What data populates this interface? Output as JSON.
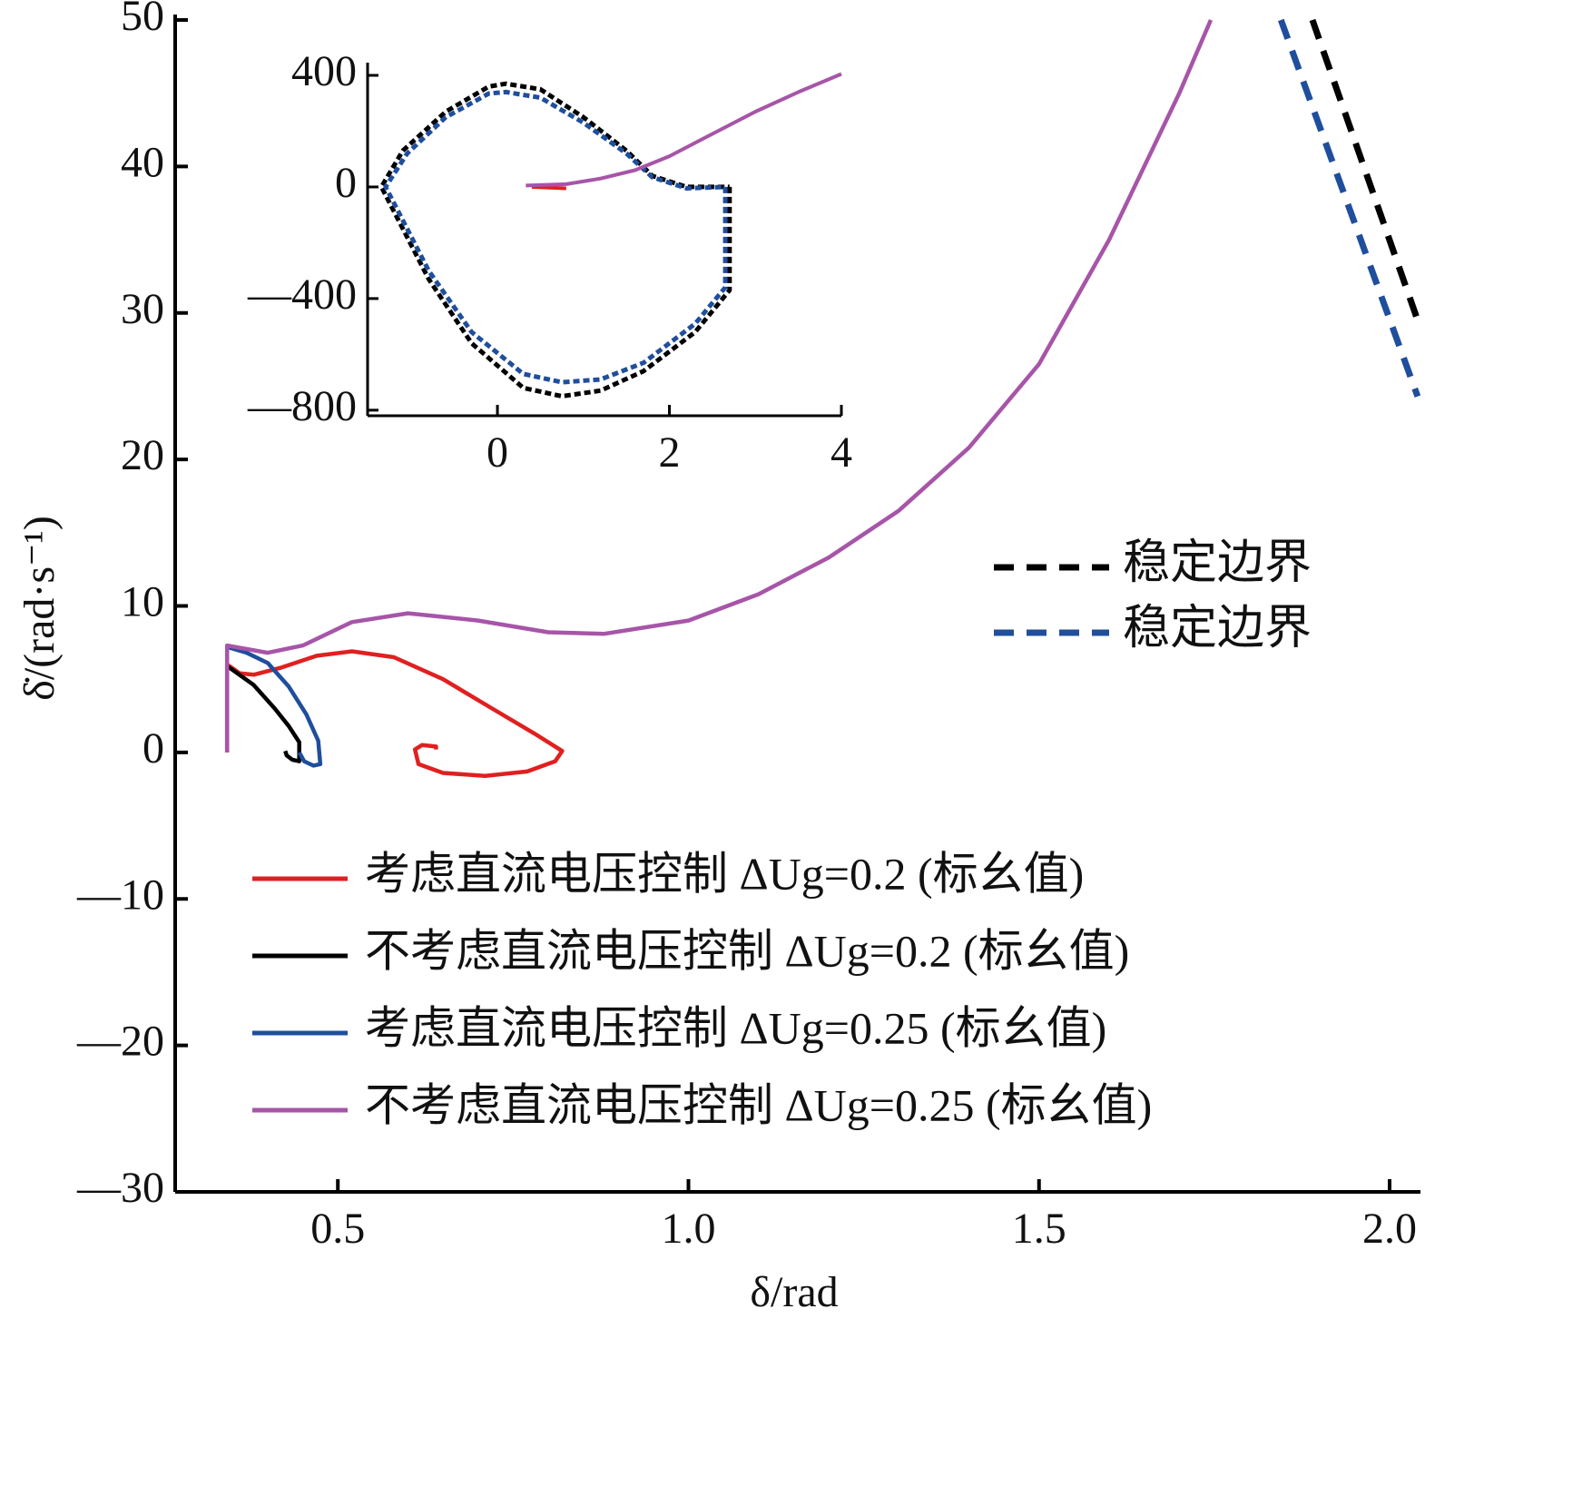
{
  "chart_data": [
    {
      "type": "line",
      "x_label": "δ/rad",
      "y_label": "δ̇/(rad·s⁻¹)",
      "xlim": [
        0.268,
        2.044
      ],
      "ylim": [
        -30,
        50
      ],
      "xticks": [
        0.5,
        {
          "value": 1,
          "label": "1.0"
        },
        1.5,
        {
          "value": 2,
          "label": "2.0"
        }
      ],
      "yticks": [
        50,
        40,
        30,
        20,
        10,
        0,
        {
          "value": -10,
          "label": "—10"
        },
        {
          "value": -20,
          "label": "—20"
        },
        {
          "value": -30,
          "label": "—30"
        }
      ],
      "series": [
        {
          "name": "稳定边界",
          "color": "#000000",
          "dashed": true,
          "x": [
            1.89,
            2.04
          ],
          "values": [
            50,
            29.5
          ]
        },
        {
          "name": "稳定边界",
          "color": "#1f4e9c",
          "dashed": true,
          "x": [
            1.845,
            2.04
          ],
          "values": [
            50,
            24.3
          ]
        },
        {
          "name": "考虑直流电压控制 ΔUg=0.2 (标幺值)",
          "color": "#e02020",
          "dashed": false,
          "x": [
            0.342,
            0.342,
            0.36,
            0.38,
            0.42,
            0.47,
            0.52,
            0.58,
            0.65,
            0.72,
            0.78,
            0.82,
            0.81,
            0.77,
            0.71,
            0.65,
            0.615,
            0.61,
            0.62,
            0.64,
            0.64
          ],
          "values": [
            0,
            6,
            5.4,
            5.3,
            5.8,
            6.6,
            6.9,
            6.5,
            5.0,
            3.0,
            1.3,
            0.1,
            -0.6,
            -1.3,
            -1.6,
            -1.4,
            -0.8,
            0.2,
            0.5,
            0.4,
            0.2
          ]
        },
        {
          "name": "不考虑直流电压控制 ΔUg=0.2 (标幺值)",
          "color": "#000000",
          "dashed": false,
          "x": [
            0.342,
            0.38,
            0.41,
            0.43,
            0.445,
            0.445,
            0.435,
            0.427,
            0.425
          ],
          "values": [
            5.9,
            4.6,
            3.0,
            1.8,
            0.7,
            -0.6,
            -0.5,
            -0.2,
            0.1
          ]
        },
        {
          "name": "考虑直流电压控制 ΔUg=0.25 (标幺值)",
          "color": "#1f4e9c",
          "dashed": false,
          "x": [
            0.342,
            0.37,
            0.4,
            0.43,
            0.455,
            0.472,
            0.475,
            0.465,
            0.452,
            0.445
          ],
          "values": [
            7.2,
            6.8,
            6.1,
            4.5,
            2.6,
            0.8,
            -0.8,
            -0.9,
            -0.6,
            0.0
          ]
        },
        {
          "name": "不考虑直流电压控制 ΔUg=0.25 (标幺值)",
          "color": "#a755a8",
          "dashed": false,
          "x": [
            0.342,
            0.342,
            0.4,
            0.45,
            0.52,
            0.6,
            0.7,
            0.8,
            0.88,
            1.0,
            1.1,
            1.2,
            1.3,
            1.4,
            1.5,
            1.6,
            1.7,
            1.745
          ],
          "values": [
            0,
            7.3,
            6.8,
            7.3,
            8.9,
            9.5,
            9.0,
            8.2,
            8.1,
            9.0,
            10.8,
            13.3,
            16.5,
            20.8,
            26.5,
            35,
            45,
            50
          ]
        }
      ]
    },
    {
      "type": "line",
      "xlim": [
        -1.51,
        4
      ],
      "ylim": [
        -820,
        426
      ],
      "xticks": [
        0,
        2,
        4
      ],
      "yticks": [
        400,
        0,
        {
          "value": -400,
          "label": "—400"
        },
        {
          "value": -800,
          "label": "—800"
        }
      ],
      "series": [
        {
          "color": "#000000",
          "dashed": true,
          "x": [
            2.7,
            2.7,
            2.3,
            1.7,
            1.2,
            0.75,
            0.3,
            -0.3,
            -0.8,
            -1.35,
            -1.1,
            -0.6,
            -0.1,
            0.1,
            0.5,
            1.0,
            1.5,
            1.8,
            2.2,
            2.7
          ],
          "values": [
            0,
            -370,
            -520,
            -660,
            -730,
            -750,
            -720,
            -560,
            -330,
            0,
            130,
            270,
            360,
            370,
            350,
            250,
            130,
            40,
            0,
            0
          ]
        },
        {
          "color": "#1f4e9c",
          "dashed": true,
          "x": [
            2.65,
            2.65,
            2.3,
            1.7,
            1.2,
            0.75,
            0.3,
            -0.3,
            -0.8,
            -1.3,
            -1.05,
            -0.6,
            -0.1,
            0.1,
            0.5,
            1.0,
            1.5,
            1.8,
            2.2,
            2.65
          ],
          "values": [
            0,
            -360,
            -490,
            -630,
            -690,
            -700,
            -670,
            -520,
            -300,
            0,
            120,
            250,
            335,
            340,
            320,
            230,
            120,
            35,
            -5,
            0
          ]
        },
        {
          "color": "#e02020",
          "dashed": false,
          "x": [
            0.4,
            0.8
          ],
          "values": [
            0,
            -5
          ]
        },
        {
          "color": "#a755a8",
          "dashed": false,
          "x": [
            0.33,
            0.8,
            1.2,
            1.6,
            2.0,
            2.5,
            3.0,
            3.5,
            4.0
          ],
          "values": [
            5,
            10,
            30,
            60,
            110,
            190,
            270,
            340,
            405
          ]
        }
      ]
    }
  ]
}
